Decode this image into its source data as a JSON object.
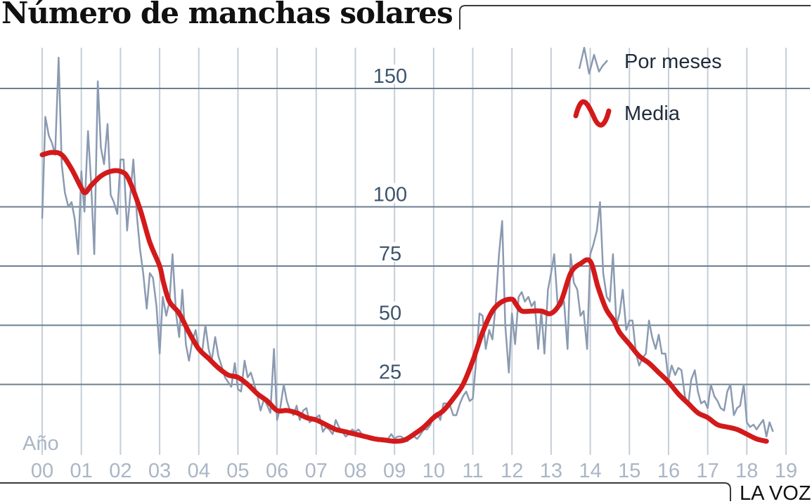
{
  "title": "Número de manchas solares",
  "brand": "LA VOZ",
  "colors": {
    "monthly": "#8a9ab2",
    "average": "#d31a1a",
    "grid": "#6c7f8e",
    "vgrid": "#c5ced8",
    "axis_label": "#aab6c6",
    "y_label": "#3c546e"
  },
  "chart_data": {
    "type": "line",
    "title": "Número de manchas solares",
    "xlabel": "Año",
    "ylabel": "",
    "x_tick_labels": [
      "00",
      "01",
      "02",
      "03",
      "04",
      "05",
      "06",
      "07",
      "08",
      "09",
      "10",
      "11",
      "12",
      "13",
      "14",
      "15",
      "16",
      "17",
      "18",
      "19"
    ],
    "xlim": [
      2000,
      2019
    ],
    "ylim": [
      0,
      165
    ],
    "y_ticks": [
      25,
      50,
      75,
      100,
      150
    ],
    "grid": true,
    "legend_placement": "top-right",
    "series": [
      {
        "name": "Por meses",
        "x": [
          2000.0,
          2000.08,
          2000.17,
          2000.25,
          2000.33,
          2000.42,
          2000.5,
          2000.58,
          2000.67,
          2000.75,
          2000.83,
          2000.92,
          2001.0,
          2001.08,
          2001.17,
          2001.25,
          2001.33,
          2001.42,
          2001.5,
          2001.58,
          2001.67,
          2001.75,
          2001.83,
          2001.92,
          2002.0,
          2002.08,
          2002.17,
          2002.25,
          2002.33,
          2002.42,
          2002.5,
          2002.58,
          2002.67,
          2002.75,
          2002.83,
          2002.92,
          2003.0,
          2003.08,
          2003.17,
          2003.25,
          2003.33,
          2003.42,
          2003.5,
          2003.58,
          2003.67,
          2003.75,
          2003.83,
          2003.92,
          2004.0,
          2004.08,
          2004.17,
          2004.25,
          2004.33,
          2004.42,
          2004.5,
          2004.58,
          2004.67,
          2004.75,
          2004.83,
          2004.92,
          2005.0,
          2005.08,
          2005.17,
          2005.25,
          2005.33,
          2005.42,
          2005.5,
          2005.58,
          2005.67,
          2005.75,
          2005.83,
          2005.92,
          2006.0,
          2006.08,
          2006.17,
          2006.25,
          2006.33,
          2006.42,
          2006.5,
          2006.58,
          2006.67,
          2006.75,
          2006.83,
          2006.92,
          2007.0,
          2007.08,
          2007.17,
          2007.25,
          2007.33,
          2007.42,
          2007.5,
          2007.58,
          2007.67,
          2007.75,
          2007.83,
          2007.92,
          2008.0,
          2008.08,
          2008.17,
          2008.25,
          2008.33,
          2008.42,
          2008.5,
          2008.58,
          2008.67,
          2008.75,
          2008.83,
          2008.92,
          2009.0,
          2009.08,
          2009.17,
          2009.25,
          2009.33,
          2009.42,
          2009.5,
          2009.58,
          2009.67,
          2009.75,
          2009.83,
          2009.92,
          2010.0,
          2010.08,
          2010.17,
          2010.25,
          2010.33,
          2010.42,
          2010.5,
          2010.58,
          2010.67,
          2010.75,
          2010.83,
          2010.92,
          2011.0,
          2011.08,
          2011.17,
          2011.25,
          2011.33,
          2011.42,
          2011.5,
          2011.58,
          2011.67,
          2011.75,
          2011.83,
          2011.92,
          2012.0,
          2012.08,
          2012.17,
          2012.25,
          2012.33,
          2012.42,
          2012.5,
          2012.58,
          2012.67,
          2012.75,
          2012.83,
          2012.92,
          2013.0,
          2013.08,
          2013.17,
          2013.25,
          2013.33,
          2013.42,
          2013.5,
          2013.58,
          2013.67,
          2013.75,
          2013.83,
          2013.92,
          2014.0,
          2014.08,
          2014.17,
          2014.25,
          2014.33,
          2014.42,
          2014.5,
          2014.58,
          2014.67,
          2014.75,
          2014.83,
          2014.92,
          2015.0,
          2015.08,
          2015.17,
          2015.25,
          2015.33,
          2015.42,
          2015.5,
          2015.58,
          2015.67,
          2015.75,
          2015.83,
          2015.92,
          2016.0,
          2016.08,
          2016.17,
          2016.25,
          2016.33,
          2016.42,
          2016.5,
          2016.58,
          2016.67,
          2016.75,
          2016.83,
          2016.92,
          2017.0,
          2017.08,
          2017.17,
          2017.25,
          2017.33,
          2017.42,
          2017.5,
          2017.58,
          2017.67,
          2017.75,
          2017.83,
          2017.92,
          2018.0,
          2018.08,
          2018.17,
          2018.25,
          2018.33,
          2018.42,
          2018.5,
          2018.58,
          2018.67
        ],
        "y": [
          95,
          138,
          130,
          127,
          122,
          163,
          118,
          106,
          100,
          102,
          95,
          80,
          115,
          98,
          132,
          110,
          80,
          153,
          125,
          118,
          135,
          105,
          102,
          97,
          120,
          120,
          90,
          105,
          120,
          96,
          82,
          72,
          57,
          72,
          70,
          58,
          38,
          62,
          54,
          60,
          80,
          55,
          45,
          65,
          42,
          35,
          43,
          48,
          40,
          38,
          50,
          40,
          35,
          45,
          37,
          33,
          28,
          26,
          24,
          34,
          23,
          22,
          35,
          28,
          30,
          25,
          20,
          14,
          19,
          16,
          13,
          40,
          10,
          15,
          25,
          18,
          14,
          12,
          16,
          10,
          14,
          15,
          9,
          10,
          11,
          12,
          5,
          7,
          6,
          4,
          10,
          7,
          5,
          3,
          4,
          6,
          5,
          6,
          4,
          3,
          2,
          3,
          2,
          1,
          2,
          1,
          2,
          4,
          2,
          3,
          3,
          2,
          1,
          3,
          3,
          2,
          4,
          6,
          6,
          8,
          12,
          13,
          10,
          17,
          17,
          16,
          12,
          12,
          17,
          20,
          22,
          18,
          19,
          34,
          55,
          54,
          40,
          48,
          44,
          58,
          80,
          94,
          50,
          30,
          55,
          42,
          62,
          64,
          60,
          62,
          58,
          60,
          40,
          56,
          38,
          65,
          72,
          80,
          58,
          58,
          60,
          40,
          80,
          68,
          65,
          54,
          56,
          40,
          80,
          84,
          90,
          102,
          72,
          62,
          60,
          80,
          50,
          55,
          65,
          48,
          52,
          52,
          38,
          33,
          36,
          38,
          52,
          45,
          40,
          46,
          38,
          38,
          27,
          33,
          29,
          32,
          31,
          20,
          16,
          27,
          31,
          22,
          17,
          18,
          15,
          25,
          20,
          18,
          15,
          14,
          22,
          25,
          12,
          15,
          16,
          25,
          9,
          7,
          8,
          6,
          8,
          10,
          3,
          9,
          5
        ]
      },
      {
        "name": "Media",
        "x": [
          2000.0,
          2000.25,
          2000.5,
          2000.75,
          2001.0,
          2001.1,
          2001.25,
          2001.5,
          2001.75,
          2002.0,
          2002.2,
          2002.5,
          2002.75,
          2003.0,
          2003.1,
          2003.25,
          2003.5,
          2003.75,
          2004.0,
          2004.25,
          2004.5,
          2004.75,
          2005.0,
          2005.25,
          2005.5,
          2005.75,
          2006.0,
          2006.25,
          2006.5,
          2006.75,
          2007.0,
          2007.25,
          2007.5,
          2007.75,
          2008.0,
          2008.25,
          2008.5,
          2008.75,
          2009.0,
          2009.25,
          2009.5,
          2009.75,
          2010.0,
          2010.25,
          2010.5,
          2010.75,
          2011.0,
          2011.25,
          2011.5,
          2011.75,
          2012.0,
          2012.1,
          2012.25,
          2012.5,
          2012.75,
          2013.0,
          2013.25,
          2013.5,
          2013.75,
          2014.0,
          2014.2,
          2014.4,
          2014.6,
          2014.75,
          2015.0,
          2015.25,
          2015.5,
          2015.75,
          2016.0,
          2016.25,
          2016.5,
          2016.75,
          2017.0,
          2017.25,
          2017.5,
          2017.75,
          2018.0,
          2018.25,
          2018.5
        ],
        "y": [
          122,
          123,
          122,
          116,
          108,
          106,
          109,
          113,
          115,
          115,
          112,
          99,
          85,
          75,
          68,
          60,
          55,
          47,
          40,
          36,
          32,
          29,
          28,
          25,
          21,
          18,
          14,
          14,
          13,
          11,
          10,
          8,
          6,
          5,
          4,
          3,
          2,
          1.5,
          1.0,
          1.5,
          4,
          7,
          11,
          14,
          19,
          25,
          35,
          47,
          56,
          60,
          61,
          59,
          56,
          56,
          56,
          55,
          60,
          72,
          76,
          77,
          66,
          57,
          52,
          47,
          42,
          37,
          34,
          30,
          26,
          21,
          17,
          13,
          11,
          8,
          7,
          6,
          4,
          2,
          1
        ]
      }
    ]
  }
}
